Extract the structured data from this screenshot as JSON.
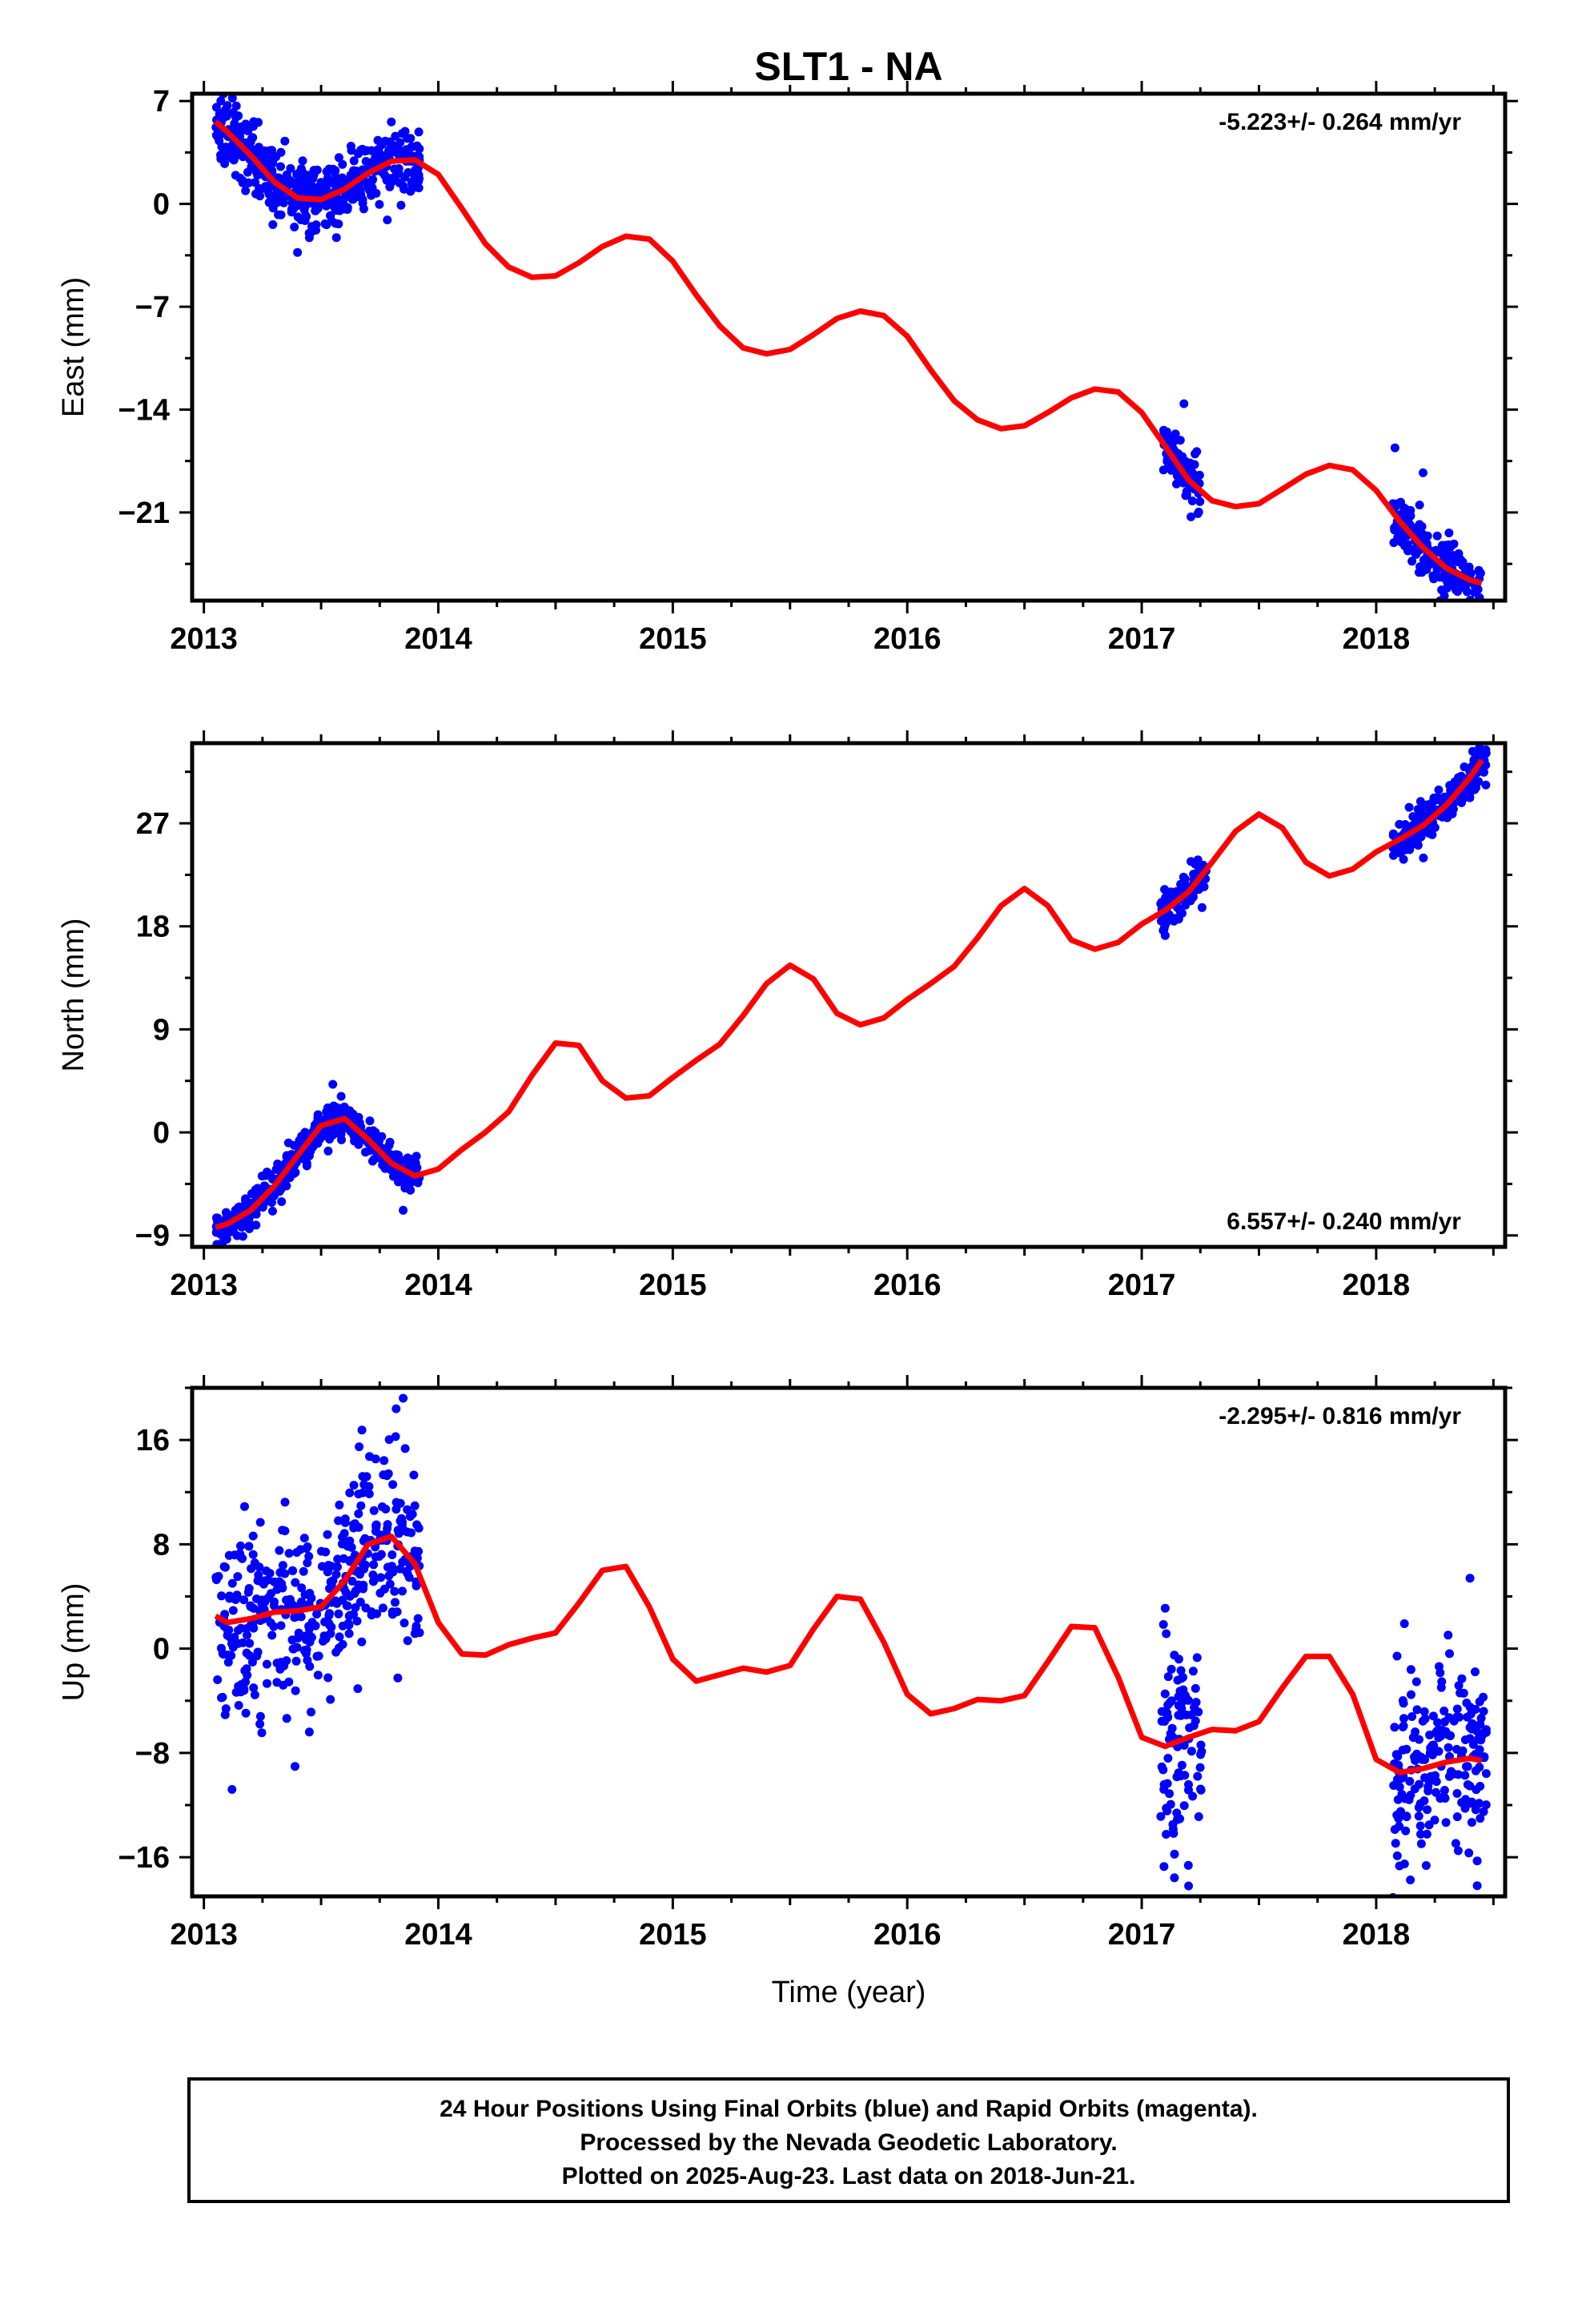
{
  "figure": {
    "title": "SLT1 - NA",
    "x_axis_label": "Time (year)",
    "footer_lines": [
      "24 Hour Positions Using Final Orbits (blue) and Rapid Orbits (magenta).",
      "Processed by the Nevada Geodetic Laboratory.",
      "Plotted on 2025-Aug-23. Last data on 2018-Jun-21."
    ],
    "colors": {
      "data_points": "#0000ff",
      "model_curve": "#ff0000",
      "axes": "#000000"
    }
  },
  "chart_data": [
    {
      "type": "scatter",
      "ylabel": "East (mm)",
      "xlim": [
        2012.95,
        2018.55
      ],
      "ylim": [
        -27,
        7.5
      ],
      "xticks": [
        2013,
        2014,
        2015,
        2016,
        2017,
        2018
      ],
      "yticks": [
        7,
        0,
        -7,
        -14,
        -21
      ],
      "ytick_labels": [
        "7",
        "0",
        "−7",
        "−14",
        "−21"
      ],
      "rate_label": "-5.223+/- 0.264 mm/yr",
      "rate_position": "top-right",
      "model": {
        "x": [
          2013.05,
          2013.1,
          2013.2,
          2013.3,
          2013.4,
          2013.5,
          2013.6,
          2013.7,
          2013.8,
          2013.9,
          2014.0,
          2014.1,
          2014.2,
          2014.3,
          2014.4,
          2014.5,
          2014.6,
          2014.7,
          2014.8,
          2014.9,
          2015.0,
          2015.1,
          2015.2,
          2015.3,
          2015.4,
          2015.5,
          2015.6,
          2015.7,
          2015.8,
          2015.9,
          2016.0,
          2016.1,
          2016.2,
          2016.3,
          2016.4,
          2016.5,
          2016.6,
          2016.7,
          2016.8,
          2016.9,
          2017.0,
          2017.1,
          2017.2,
          2017.3,
          2017.4,
          2017.5,
          2017.6,
          2017.7,
          2017.8,
          2017.9,
          2018.0,
          2018.1,
          2018.2,
          2018.3,
          2018.4,
          2018.45
        ],
        "y": [
          5.6,
          4.9,
          3.3,
          1.5,
          0.4,
          0.3,
          1.0,
          2.1,
          2.9,
          3.0,
          2.0,
          -0.3,
          -2.7,
          -4.3,
          -5.0,
          -4.9,
          -4.0,
          -2.9,
          -2.2,
          -2.4,
          -3.9,
          -6.2,
          -8.3,
          -9.8,
          -10.2,
          -9.9,
          -8.9,
          -7.8,
          -7.3,
          -7.6,
          -9.0,
          -11.3,
          -13.4,
          -14.7,
          -15.3,
          -15.1,
          -14.2,
          -13.2,
          -12.6,
          -12.8,
          -14.2,
          -16.5,
          -18.8,
          -20.2,
          -20.6,
          -20.4,
          -19.4,
          -18.4,
          -17.8,
          -18.1,
          -19.5,
          -21.6,
          -23.4,
          -24.8,
          -25.6,
          -25.8
        ]
      },
      "clusters": [
        {
          "x_range": [
            2013.05,
            2013.92
          ],
          "n": 520,
          "spread": 1.1
        },
        {
          "x_range": [
            2017.08,
            2017.25
          ],
          "n": 95,
          "spread": 0.9
        },
        {
          "x_range": [
            2018.07,
            2018.45
          ],
          "n": 200,
          "spread": 0.9
        }
      ],
      "outliers": [
        {
          "x": 2013.1,
          "y": 6.7
        },
        {
          "x": 2013.08,
          "y": 6.2
        },
        {
          "x": 2017.18,
          "y": -13.6
        },
        {
          "x": 2017.21,
          "y": -21.3
        },
        {
          "x": 2018.08,
          "y": -16.6
        },
        {
          "x": 2018.2,
          "y": -18.3
        },
        {
          "x": 2013.45,
          "y": -2.3
        }
      ]
    },
    {
      "type": "scatter",
      "ylabel": "North (mm)",
      "xlim": [
        2012.95,
        2018.55
      ],
      "ylim": [
        -10,
        34
      ],
      "xticks": [
        2013,
        2014,
        2015,
        2016,
        2017,
        2018
      ],
      "yticks": [
        27,
        18,
        9,
        0,
        -9
      ],
      "ytick_labels": [
        "27",
        "18",
        "9",
        "0",
        "−9"
      ],
      "rate_label": "6.557+/- 0.240 mm/yr",
      "rate_position": "bottom-right",
      "model": {
        "x": [
          2013.05,
          2013.1,
          2013.2,
          2013.3,
          2013.4,
          2013.5,
          2013.6,
          2013.7,
          2013.8,
          2013.9,
          2014.0,
          2014.1,
          2014.2,
          2014.3,
          2014.4,
          2014.5,
          2014.6,
          2014.7,
          2014.8,
          2014.9,
          2015.0,
          2015.1,
          2015.2,
          2015.3,
          2015.4,
          2015.5,
          2015.6,
          2015.7,
          2015.8,
          2015.9,
          2016.0,
          2016.1,
          2016.2,
          2016.3,
          2016.4,
          2016.5,
          2016.6,
          2016.7,
          2016.8,
          2016.9,
          2017.0,
          2017.1,
          2017.2,
          2017.3,
          2017.4,
          2017.5,
          2017.6,
          2017.7,
          2017.8,
          2017.9,
          2018.0,
          2018.1,
          2018.2,
          2018.3,
          2018.4,
          2018.45
        ],
        "y": [
          -8.3,
          -8.0,
          -6.8,
          -4.7,
          -2.0,
          0.6,
          1.2,
          -0.6,
          -2.7,
          -3.8,
          -3.2,
          -1.5,
          0.0,
          1.8,
          5.0,
          7.8,
          7.6,
          4.5,
          3.0,
          3.2,
          4.8,
          6.3,
          7.7,
          10.2,
          13.0,
          14.6,
          13.4,
          10.4,
          9.4,
          10.0,
          11.6,
          13.0,
          14.5,
          17.0,
          19.8,
          21.3,
          19.8,
          16.8,
          16.0,
          16.6,
          18.2,
          19.4,
          21.0,
          23.6,
          26.3,
          27.8,
          26.6,
          23.6,
          22.4,
          23.0,
          24.5,
          25.6,
          26.8,
          28.6,
          31.0,
          32.5
        ]
      },
      "clusters": [
        {
          "x_range": [
            2013.05,
            2013.92
          ],
          "n": 520,
          "spread": 0.8
        },
        {
          "x_range": [
            2017.08,
            2017.28
          ],
          "n": 95,
          "spread": 0.9
        },
        {
          "x_range": [
            2018.07,
            2018.47
          ],
          "n": 210,
          "spread": 0.9
        }
      ],
      "outliers": [
        {
          "x": 2013.08,
          "y": -9.6
        },
        {
          "x": 2013.55,
          "y": 4.2
        },
        {
          "x": 2017.1,
          "y": 17.2
        },
        {
          "x": 2018.45,
          "y": 33.2
        },
        {
          "x": 2013.85,
          "y": -6.8
        }
      ]
    },
    {
      "type": "scatter",
      "ylabel": "Up (mm)",
      "xlim": [
        2012.95,
        2018.55
      ],
      "ylim": [
        -19,
        20
      ],
      "xticks": [
        2013,
        2014,
        2015,
        2016,
        2017,
        2018
      ],
      "yticks": [
        16,
        8,
        0,
        -8,
        -16
      ],
      "ytick_labels": [
        "16",
        "8",
        "0",
        "−8",
        "−16"
      ],
      "rate_label": "-2.295+/- 0.816 mm/yr",
      "rate_position": "top-right",
      "model": {
        "x": [
          2013.05,
          2013.1,
          2013.2,
          2013.3,
          2013.4,
          2013.5,
          2013.6,
          2013.7,
          2013.8,
          2013.9,
          2014.0,
          2014.1,
          2014.2,
          2014.3,
          2014.4,
          2014.5,
          2014.6,
          2014.7,
          2014.8,
          2014.9,
          2015.0,
          2015.1,
          2015.2,
          2015.3,
          2015.4,
          2015.5,
          2015.6,
          2015.7,
          2015.8,
          2015.9,
          2016.0,
          2016.1,
          2016.2,
          2016.3,
          2016.4,
          2016.5,
          2016.6,
          2016.7,
          2016.8,
          2016.9,
          2017.0,
          2017.1,
          2017.2,
          2017.3,
          2017.4,
          2017.5,
          2017.6,
          2017.7,
          2017.8,
          2017.9,
          2018.0,
          2018.1,
          2018.2,
          2018.3,
          2018.4,
          2018.45
        ],
        "y": [
          2.5,
          2.0,
          2.3,
          2.8,
          2.9,
          3.2,
          5.2,
          8.0,
          8.6,
          6.5,
          2.0,
          -0.4,
          -0.5,
          0.3,
          0.8,
          1.2,
          3.5,
          6.0,
          6.3,
          3.2,
          -0.8,
          -2.5,
          -2.0,
          -1.5,
          -1.8,
          -1.3,
          1.5,
          4.0,
          3.8,
          0.5,
          -3.5,
          -5.0,
          -4.6,
          -3.9,
          -4.0,
          -3.6,
          -1.0,
          1.7,
          1.6,
          -2.2,
          -6.8,
          -7.5,
          -6.8,
          -6.2,
          -6.3,
          -5.6,
          -3.0,
          -0.6,
          -0.6,
          -3.5,
          -8.5,
          -9.5,
          -9.2,
          -8.7,
          -8.4,
          -8.6
        ]
      },
      "clusters": [
        {
          "x_range": [
            2013.05,
            2013.92
          ],
          "n": 420,
          "spread": 3.6
        },
        {
          "x_range": [
            2017.08,
            2017.26
          ],
          "n": 95,
          "spread": 4.2
        },
        {
          "x_range": [
            2018.07,
            2018.47
          ],
          "n": 200,
          "spread": 3.8
        }
      ],
      "outliers": [
        {
          "x": 2013.85,
          "y": 19.2
        },
        {
          "x": 2013.82,
          "y": 18.4
        },
        {
          "x": 2013.12,
          "y": -10.8
        },
        {
          "x": 2017.2,
          "y": -18.2
        },
        {
          "x": 2017.1,
          "y": 3.1
        },
        {
          "x": 2018.4,
          "y": 5.4
        },
        {
          "x": 2018.35,
          "y": -15.5
        },
        {
          "x": 2013.45,
          "y": -6.4
        }
      ]
    }
  ]
}
